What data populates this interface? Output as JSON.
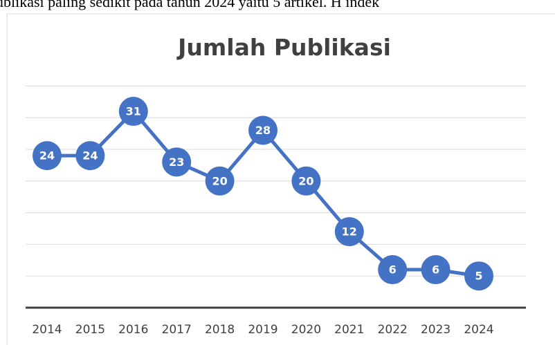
{
  "document_text": "ublikasi paling sedikit pada tahun 2024 yaitu 5 artikel. H indek",
  "chart_data": {
    "type": "line",
    "title": "Jumlah Publikasi",
    "categories": [
      "2014",
      "2015",
      "2016",
      "2017",
      "2018",
      "2019",
      "2020",
      "2021",
      "2022",
      "2023",
      "2024"
    ],
    "values": [
      24,
      24,
      31,
      23,
      20,
      28,
      20,
      12,
      6,
      6,
      5
    ],
    "color": "#4472c4",
    "ylim": [
      0,
      35
    ],
    "yticks": [
      0,
      5,
      10,
      15,
      20,
      25,
      30,
      35
    ],
    "grid": true
  }
}
